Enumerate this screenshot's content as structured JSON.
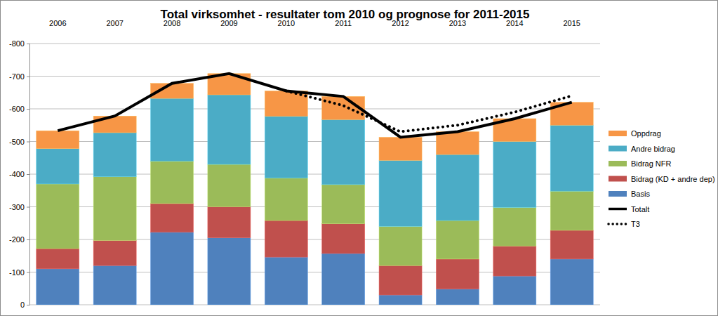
{
  "chart_data": {
    "type": "bar",
    "stacked": true,
    "title": "Total virksomhet - resultater tom 2010 og prognose for 2011-2015",
    "categories": [
      "2006",
      "2007",
      "2008",
      "2009",
      "2010",
      "2011",
      "2012",
      "2013",
      "2014",
      "2015"
    ],
    "ylim": [
      0,
      -800
    ],
    "yticks": [
      0,
      -100,
      -200,
      -300,
      -400,
      -500,
      -600,
      -700,
      -800
    ],
    "grid": true,
    "legend": "right",
    "series": [
      {
        "name": "Basis",
        "type": "bar",
        "color": "#4f81bd",
        "values": [
          -110,
          -120,
          -222,
          -205,
          -146,
          -157,
          -30,
          -48,
          -88,
          -140
        ]
      },
      {
        "name": "Bidrag (KD + andre dep)",
        "type": "bar",
        "color": "#c0504d",
        "values": [
          -62,
          -77,
          -88,
          -95,
          -112,
          -91,
          -90,
          -92,
          -92,
          -88
        ]
      },
      {
        "name": "Bidrag NFR",
        "type": "bar",
        "color": "#9bbb59",
        "values": [
          -198,
          -195,
          -130,
          -130,
          -130,
          -120,
          -120,
          -118,
          -118,
          -120
        ]
      },
      {
        "name": "Andre bidrag",
        "type": "bar",
        "color": "#4bacc6",
        "values": [
          -108,
          -135,
          -192,
          -213,
          -189,
          -199,
          -202,
          -202,
          -202,
          -202
        ]
      },
      {
        "name": "Oppdrag",
        "type": "bar",
        "color": "#f79646",
        "values": [
          -55,
          -51,
          -46,
          -65,
          -78,
          -71,
          -71,
          -70,
          -70,
          -70
        ]
      },
      {
        "name": "Totalt",
        "type": "line",
        "color": "#000000",
        "line_style": "solid",
        "values": [
          -533,
          -578,
          -678,
          -708,
          -655,
          -638,
          -513,
          -530,
          -570,
          -620
        ]
      },
      {
        "name": "T3",
        "type": "line",
        "color": "#000000",
        "line_style": "dotted",
        "values": [
          null,
          null,
          null,
          null,
          -655,
          -610,
          -530,
          -550,
          -590,
          -640
        ]
      }
    ]
  }
}
